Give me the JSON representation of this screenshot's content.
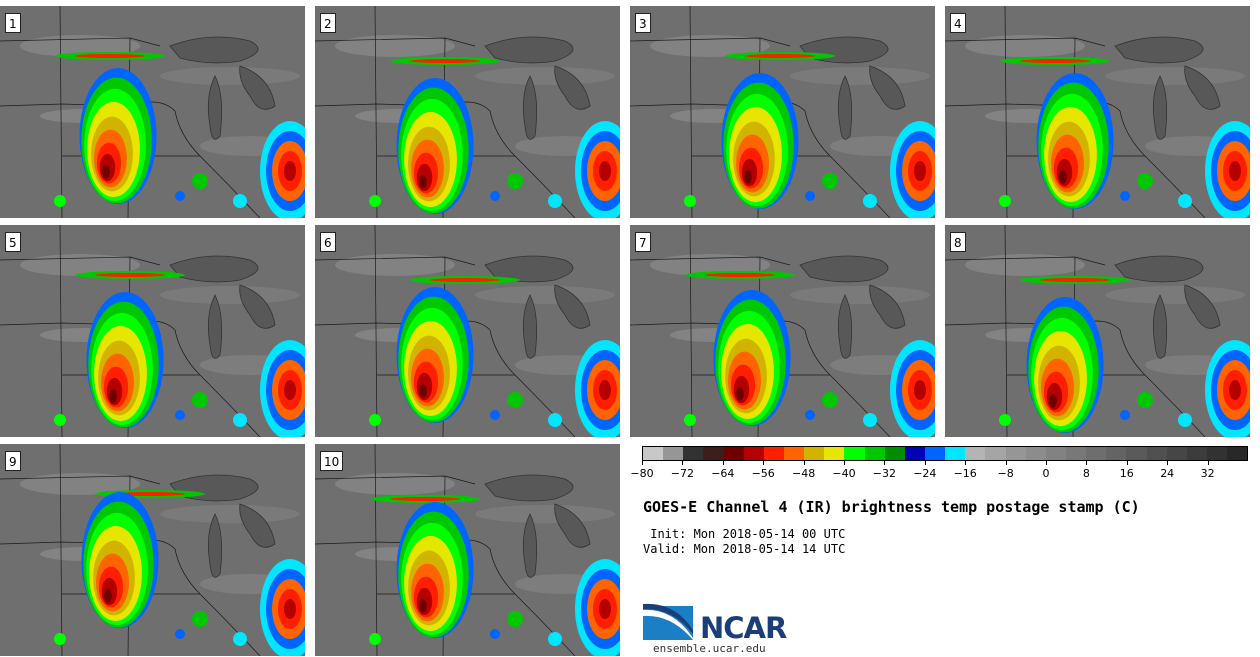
{
  "panels": [
    {
      "label": "1"
    },
    {
      "label": "2"
    },
    {
      "label": "3"
    },
    {
      "label": "4"
    },
    {
      "label": "5"
    },
    {
      "label": "6"
    },
    {
      "label": "7"
    },
    {
      "label": "8"
    },
    {
      "label": "9"
    },
    {
      "label": "10"
    }
  ],
  "colorbar": {
    "colors": [
      "#c8c8c8",
      "#969696",
      "#323232",
      "#3c1e1e",
      "#6e0000",
      "#b40000",
      "#ff1e00",
      "#ff6400",
      "#d2b400",
      "#e6e600",
      "#00ff00",
      "#00c800",
      "#008c00",
      "#0000b4",
      "#0064ff",
      "#00e6ff",
      "#b4b4b4",
      "#a5a5a5",
      "#969696",
      "#8c8c8c",
      "#828282",
      "#787878",
      "#6e6e6e",
      "#646464",
      "#5a5a5a",
      "#505050",
      "#464646",
      "#3c3c3c",
      "#323232",
      "#282828"
    ],
    "min": -80,
    "max": 40,
    "tick_labels": [
      "−80",
      "−72",
      "−64",
      "−56",
      "−48",
      "−40",
      "−32",
      "−24",
      "−16",
      "−8",
      "0",
      "8",
      "16",
      "24",
      "32"
    ],
    "tick_values": [
      -80,
      -72,
      -64,
      -56,
      -48,
      -40,
      -32,
      -24,
      -16,
      -8,
      0,
      8,
      16,
      24,
      32
    ]
  },
  "title": "GOES-E Channel 4 (IR) brightness temp postage stamp (C)",
  "init": " Init: Mon 2018-05-14 00 UTC",
  "valid": "Valid: Mon 2018-05-14 14 UTC",
  "logo": {
    "text": "NCAR",
    "site": "ensemble.ucar.edu"
  },
  "colors": {
    "map_background": "#6f6f6f",
    "border_lines": "#1a1a1a",
    "lake": "#585858"
  }
}
